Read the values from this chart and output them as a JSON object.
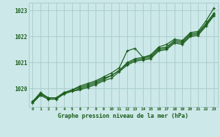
{
  "background_color": "#cce8e8",
  "grid_color": "#aacccc",
  "line_color": "#1a5c1a",
  "title": "Graphe pression niveau de la mer (hPa)",
  "xlim": [
    -0.5,
    23.5
  ],
  "ylim": [
    1019.3,
    1023.3
  ],
  "yticks": [
    1020,
    1021,
    1022,
    1023
  ],
  "xticks": [
    0,
    1,
    2,
    3,
    4,
    5,
    6,
    7,
    8,
    9,
    10,
    11,
    12,
    13,
    14,
    15,
    16,
    17,
    18,
    19,
    20,
    21,
    22,
    23
  ],
  "series": [
    [
      1019.5,
      1019.85,
      1019.65,
      1019.65,
      1019.85,
      1019.95,
      1020.1,
      1020.2,
      1020.3,
      1020.45,
      1020.6,
      1020.8,
      1021.45,
      1021.55,
      1021.2,
      1021.3,
      1021.6,
      1021.7,
      1021.9,
      1021.85,
      1022.15,
      1022.2,
      1022.6,
      1023.1
    ],
    [
      1019.5,
      1019.8,
      1019.65,
      1019.65,
      1019.85,
      1019.95,
      1020.05,
      1020.15,
      1020.25,
      1020.4,
      1020.5,
      1020.7,
      1021.0,
      1021.15,
      1021.2,
      1021.25,
      1021.55,
      1021.6,
      1021.85,
      1021.8,
      1022.1,
      1022.15,
      1022.5,
      1022.9
    ],
    [
      1019.45,
      1019.75,
      1019.6,
      1019.6,
      1019.8,
      1019.9,
      1020.0,
      1020.1,
      1020.2,
      1020.35,
      1020.5,
      1020.7,
      1020.95,
      1021.1,
      1021.15,
      1021.2,
      1021.5,
      1021.55,
      1021.8,
      1021.75,
      1022.05,
      1022.1,
      1022.45,
      1022.85
    ],
    [
      1019.45,
      1019.75,
      1019.6,
      1019.6,
      1019.8,
      1019.9,
      1019.95,
      1020.05,
      1020.15,
      1020.3,
      1020.4,
      1020.65,
      1020.9,
      1021.05,
      1021.1,
      1021.15,
      1021.45,
      1021.5,
      1021.75,
      1021.7,
      1022.0,
      1022.05,
      1022.4,
      1022.8
    ]
  ]
}
